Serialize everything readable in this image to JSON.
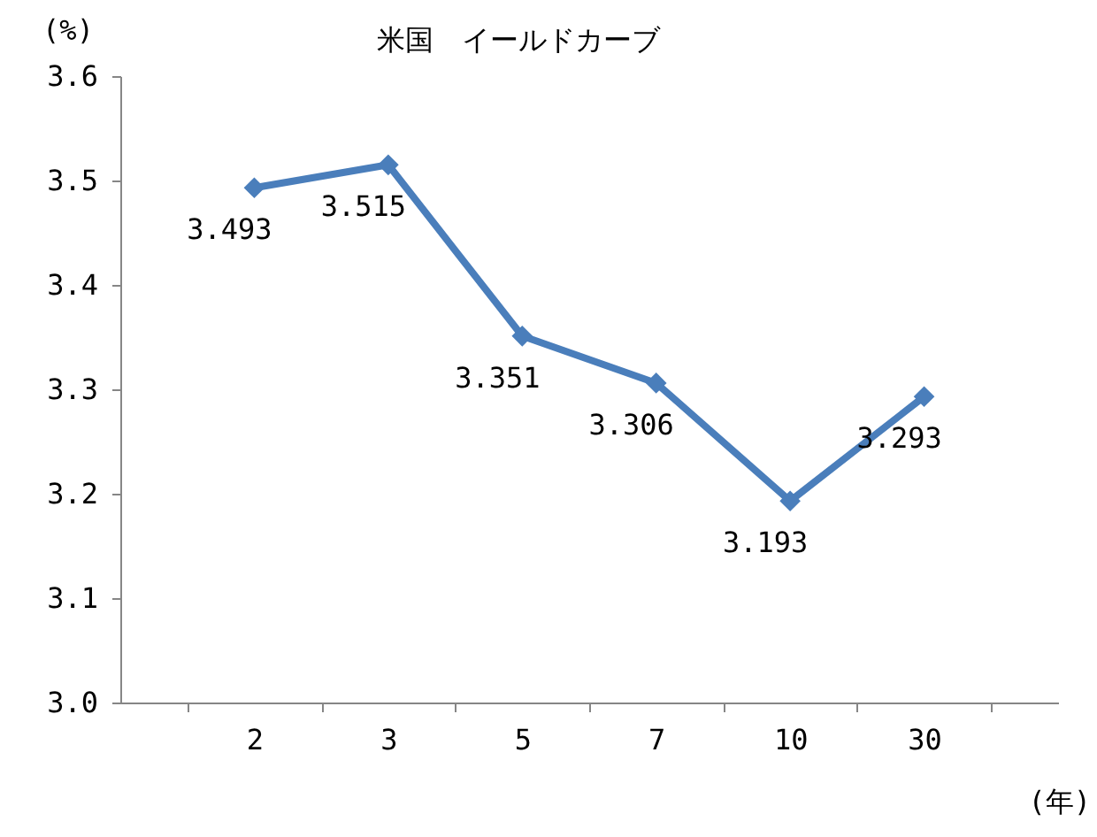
{
  "chart_data": {
    "type": "line",
    "title": "米国　イールドカーブ",
    "ylabel": "(%)",
    "xlabel": "(年)",
    "categories": [
      "2",
      "3",
      "5",
      "7",
      "10",
      "30"
    ],
    "series": [
      {
        "color": "#4a7ebb",
        "values": [
          3.493,
          3.515,
          3.351,
          3.306,
          3.193,
          3.293
        ]
      }
    ],
    "ylim": [
      3.0,
      3.6
    ],
    "yticks": [
      {
        "value": 3,
        "label": "3.0"
      },
      3.1,
      3.2,
      3.3,
      3.4,
      3.5,
      3.6
    ],
    "data_labels": true,
    "marker": "diamond",
    "line_style": "solid",
    "grid": false
  }
}
